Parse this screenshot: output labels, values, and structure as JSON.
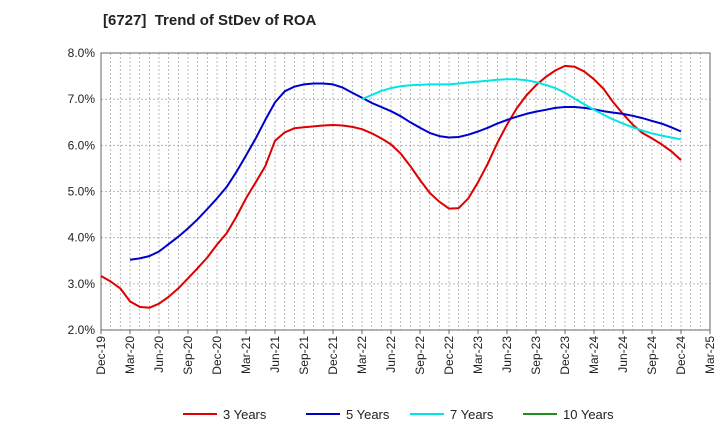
{
  "chart_data": {
    "type": "line",
    "title": "[6727]  Trend of StDev of ROA",
    "xlabel": "",
    "ylabel": "",
    "ylim": [
      2.0,
      8.0
    ],
    "y_ticks": [
      "2.0%",
      "3.0%",
      "4.0%",
      "5.0%",
      "6.0%",
      "7.0%",
      "8.0%"
    ],
    "x_ticks": [
      "Dec-19",
      "Mar-20",
      "Jun-20",
      "Sep-20",
      "Dec-20",
      "Mar-21",
      "Jun-21",
      "Sep-21",
      "Dec-21",
      "Mar-22",
      "Jun-22",
      "Sep-22",
      "Dec-22",
      "Mar-23",
      "Jun-23",
      "Sep-23",
      "Dec-23",
      "Mar-24",
      "Jun-24",
      "Sep-24",
      "Dec-24",
      "Mar-25"
    ],
    "grid": true,
    "legend_position": "bottom",
    "series": [
      {
        "name": "3 Years",
        "color": "#dd0000",
        "points": [
          [
            "Dec-19",
            3.17
          ],
          [
            "Jan-20",
            3.05
          ],
          [
            "Feb-20",
            2.9
          ],
          [
            "Mar-20",
            2.62
          ],
          [
            "Apr-20",
            2.5
          ],
          [
            "May-20",
            2.48
          ],
          [
            "Jun-20",
            2.57
          ],
          [
            "Jul-20",
            2.72
          ],
          [
            "Aug-20",
            2.9
          ],
          [
            "Sep-20",
            3.12
          ],
          [
            "Oct-20",
            3.34
          ],
          [
            "Nov-20",
            3.57
          ],
          [
            "Dec-20",
            3.85
          ],
          [
            "Jan-21",
            4.1
          ],
          [
            "Feb-21",
            4.45
          ],
          [
            "Mar-21",
            4.85
          ],
          [
            "Apr-21",
            5.2
          ],
          [
            "May-21",
            5.55
          ],
          [
            "Jun-21",
            6.1
          ],
          [
            "Jul-21",
            6.28
          ],
          [
            "Aug-21",
            6.37
          ],
          [
            "Sep-21",
            6.39
          ],
          [
            "Oct-21",
            6.41
          ],
          [
            "Nov-21",
            6.43
          ],
          [
            "Dec-21",
            6.44
          ],
          [
            "Jan-22",
            6.43
          ],
          [
            "Feb-22",
            6.4
          ],
          [
            "Mar-22",
            6.35
          ],
          [
            "Apr-22",
            6.26
          ],
          [
            "May-22",
            6.15
          ],
          [
            "Jun-22",
            6.02
          ],
          [
            "Jul-22",
            5.82
          ],
          [
            "Aug-22",
            5.55
          ],
          [
            "Sep-22",
            5.25
          ],
          [
            "Oct-22",
            4.97
          ],
          [
            "Nov-22",
            4.78
          ],
          [
            "Dec-22",
            4.63
          ],
          [
            "Jan-23",
            4.64
          ],
          [
            "Feb-23",
            4.85
          ],
          [
            "Mar-23",
            5.2
          ],
          [
            "Apr-23",
            5.6
          ],
          [
            "May-23",
            6.05
          ],
          [
            "Jun-23",
            6.45
          ],
          [
            "Jul-23",
            6.8
          ],
          [
            "Aug-23",
            7.08
          ],
          [
            "Sep-23",
            7.3
          ],
          [
            "Oct-23",
            7.48
          ],
          [
            "Nov-23",
            7.62
          ],
          [
            "Dec-23",
            7.72
          ],
          [
            "Jan-24",
            7.7
          ],
          [
            "Feb-24",
            7.6
          ],
          [
            "Mar-24",
            7.43
          ],
          [
            "Apr-24",
            7.22
          ],
          [
            "May-24",
            6.93
          ],
          [
            "Jun-24",
            6.68
          ],
          [
            "Jul-24",
            6.45
          ],
          [
            "Aug-24",
            6.27
          ],
          [
            "Sep-24",
            6.15
          ],
          [
            "Oct-24",
            6.02
          ],
          [
            "Nov-24",
            5.87
          ],
          [
            "Dec-24",
            5.68
          ]
        ]
      },
      {
        "name": "5 Years",
        "color": "#0000cc",
        "points": [
          [
            "Mar-20",
            3.52
          ],
          [
            "Apr-20",
            3.55
          ],
          [
            "May-20",
            3.6
          ],
          [
            "Jun-20",
            3.7
          ],
          [
            "Jul-20",
            3.86
          ],
          [
            "Aug-20",
            4.02
          ],
          [
            "Sep-20",
            4.2
          ],
          [
            "Oct-20",
            4.4
          ],
          [
            "Nov-20",
            4.62
          ],
          [
            "Dec-20",
            4.85
          ],
          [
            "Jan-21",
            5.1
          ],
          [
            "Feb-21",
            5.42
          ],
          [
            "Mar-21",
            5.78
          ],
          [
            "Apr-21",
            6.15
          ],
          [
            "May-21",
            6.55
          ],
          [
            "Jun-21",
            6.93
          ],
          [
            "Jul-21",
            7.17
          ],
          [
            "Aug-21",
            7.27
          ],
          [
            "Sep-21",
            7.32
          ],
          [
            "Oct-21",
            7.34
          ],
          [
            "Nov-21",
            7.34
          ],
          [
            "Dec-21",
            7.32
          ],
          [
            "Jan-22",
            7.25
          ],
          [
            "Feb-22",
            7.14
          ],
          [
            "Mar-22",
            7.03
          ],
          [
            "Apr-22",
            6.92
          ],
          [
            "May-22",
            6.83
          ],
          [
            "Jun-22",
            6.74
          ],
          [
            "Jul-22",
            6.63
          ],
          [
            "Aug-22",
            6.5
          ],
          [
            "Sep-22",
            6.38
          ],
          [
            "Oct-22",
            6.27
          ],
          [
            "Nov-22",
            6.2
          ],
          [
            "Dec-22",
            6.17
          ],
          [
            "Jan-23",
            6.18
          ],
          [
            "Feb-23",
            6.23
          ],
          [
            "Mar-23",
            6.3
          ],
          [
            "Apr-23",
            6.38
          ],
          [
            "May-23",
            6.47
          ],
          [
            "Jun-23",
            6.55
          ],
          [
            "Jul-23",
            6.62
          ],
          [
            "Aug-23",
            6.68
          ],
          [
            "Sep-23",
            6.73
          ],
          [
            "Oct-23",
            6.77
          ],
          [
            "Nov-23",
            6.81
          ],
          [
            "Dec-23",
            6.83
          ],
          [
            "Jan-24",
            6.83
          ],
          [
            "Feb-24",
            6.81
          ],
          [
            "Mar-24",
            6.78
          ],
          [
            "Apr-24",
            6.74
          ],
          [
            "May-24",
            6.71
          ],
          [
            "Jun-24",
            6.68
          ],
          [
            "Jul-24",
            6.64
          ],
          [
            "Aug-24",
            6.59
          ],
          [
            "Sep-24",
            6.53
          ],
          [
            "Oct-24",
            6.47
          ],
          [
            "Nov-24",
            6.39
          ],
          [
            "Dec-24",
            6.3
          ]
        ]
      },
      {
        "name": "7 Years",
        "color": "#00e5e5",
        "points": [
          [
            "Mar-22",
            7.0
          ],
          [
            "Apr-22",
            7.09
          ],
          [
            "May-22",
            7.18
          ],
          [
            "Jun-22",
            7.24
          ],
          [
            "Jul-22",
            7.28
          ],
          [
            "Aug-22",
            7.3
          ],
          [
            "Sep-22",
            7.31
          ],
          [
            "Oct-22",
            7.32
          ],
          [
            "Nov-22",
            7.32
          ],
          [
            "Dec-22",
            7.32
          ],
          [
            "Jan-23",
            7.34
          ],
          [
            "Feb-23",
            7.36
          ],
          [
            "Mar-23",
            7.38
          ],
          [
            "Apr-23",
            7.4
          ],
          [
            "May-23",
            7.42
          ],
          [
            "Jun-23",
            7.43
          ],
          [
            "Jul-23",
            7.43
          ],
          [
            "Aug-23",
            7.41
          ],
          [
            "Sep-23",
            7.37
          ],
          [
            "Oct-23",
            7.31
          ],
          [
            "Nov-23",
            7.24
          ],
          [
            "Dec-23",
            7.14
          ],
          [
            "Jan-24",
            7.01
          ],
          [
            "Feb-24",
            6.89
          ],
          [
            "Mar-24",
            6.77
          ],
          [
            "Apr-24",
            6.66
          ],
          [
            "May-24",
            6.56
          ],
          [
            "Jun-24",
            6.47
          ],
          [
            "Jul-24",
            6.39
          ],
          [
            "Aug-24",
            6.32
          ],
          [
            "Sep-24",
            6.26
          ],
          [
            "Oct-24",
            6.21
          ],
          [
            "Nov-24",
            6.17
          ],
          [
            "Dec-24",
            6.13
          ]
        ]
      },
      {
        "name": "10 Years",
        "color": "#228b22",
        "points": []
      }
    ]
  }
}
